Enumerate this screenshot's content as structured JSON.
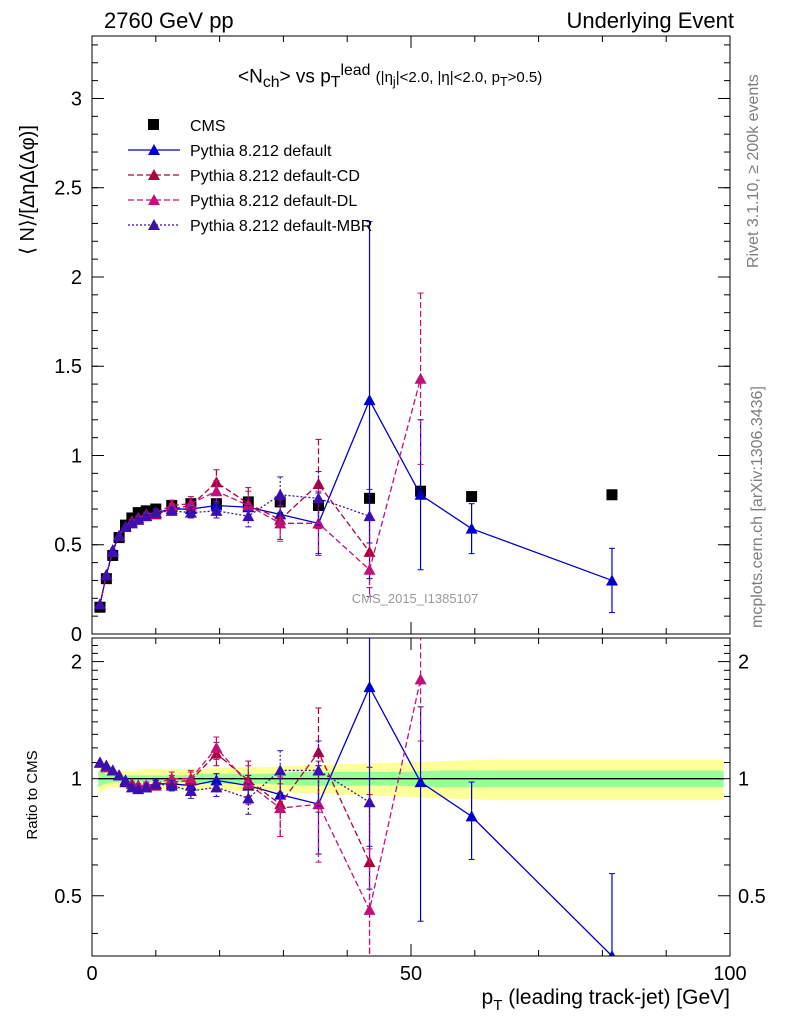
{
  "header": {
    "left_label": "2760 GeV pp",
    "right_label": "Underlying Event",
    "title_html": "&lt;N<sub>ch</sub>&gt; vs p<sub>T</sub><sup>lead</sup> <span style='font-size:15px'>(|η<sub>j</sub>|&lt;2.0, |η|&lt;2.0, p<sub>T</sub>&gt;0.5)</span>"
  },
  "side_labels": {
    "rivet": "Rivet 3.1.10, ≥ 200k events",
    "mcplots": "mcplots.cern.ch [arXiv:1306.3436]"
  },
  "watermark": "CMS_2015_I1385107",
  "chart_data": [
    {
      "type": "scatter",
      "panel": "main",
      "ylabel": "⟨ N⟩/[ΔηΔ(Δφ)]",
      "xlim": [
        0,
        100
      ],
      "ylim": [
        0,
        3.35
      ],
      "yticks": [
        0,
        0.5,
        1,
        1.5,
        2,
        2.5,
        3
      ],
      "ytick_labels": [
        "0",
        "0.5",
        "1",
        "1.5",
        "2",
        "2.5",
        "3"
      ],
      "legend_position": "top-left",
      "series": [
        {
          "name": "CMS",
          "color": "#000000",
          "marker": "square",
          "line": "none",
          "x": [
            1.25,
            2.25,
            3.25,
            4.25,
            5.25,
            6.25,
            7.25,
            8.5,
            10,
            12.5,
            15.5,
            19.5,
            24.5,
            29.5,
            35.5,
            43.5,
            51.5,
            59.5,
            81.5
          ],
          "y": [
            0.15,
            0.31,
            0.44,
            0.54,
            0.61,
            0.65,
            0.68,
            0.69,
            0.7,
            0.72,
            0.73,
            0.73,
            0.74,
            0.74,
            0.72,
            0.76,
            0.8,
            0.77,
            0.78
          ]
        },
        {
          "name": "Pythia 8.212 default",
          "color": "#0000cc",
          "marker": "triangle",
          "line": "solid",
          "x": [
            1.25,
            2.25,
            3.25,
            4.25,
            5.25,
            6.25,
            7.25,
            8.5,
            10,
            12.5,
            15.5,
            19.5,
            24.5,
            29.5,
            35.5,
            43.5,
            51.5,
            59.5,
            81.5
          ],
          "y": [
            0.165,
            0.33,
            0.47,
            0.55,
            0.6,
            0.63,
            0.65,
            0.67,
            0.68,
            0.7,
            0.7,
            0.72,
            0.71,
            0.67,
            0.62,
            1.31,
            0.78,
            0.59,
            0.3
          ],
          "yerr": [
            0,
            0,
            0,
            0,
            0,
            0.01,
            0.01,
            0.01,
            0.01,
            0.02,
            0.02,
            0.03,
            0.05,
            0.07,
            0.17,
            1.0,
            0.42,
            0.14,
            0.18
          ]
        },
        {
          "name": "Pythia 8.212 default-CD",
          "color": "#b0003c",
          "marker": "triangle",
          "line": "dashed",
          "x": [
            1.25,
            2.25,
            3.25,
            4.25,
            5.25,
            6.25,
            7.25,
            8.5,
            10,
            12.5,
            15.5,
            19.5,
            24.5,
            29.5,
            35.5,
            43.5
          ],
          "y": [
            0.165,
            0.33,
            0.46,
            0.55,
            0.6,
            0.63,
            0.64,
            0.66,
            0.67,
            0.7,
            0.72,
            0.85,
            0.73,
            0.64,
            0.84,
            0.46
          ],
          "yerr": [
            0,
            0,
            0,
            0,
            0,
            0.01,
            0.01,
            0.01,
            0.02,
            0.03,
            0.04,
            0.07,
            0.09,
            0.11,
            0.25,
            0.2
          ]
        },
        {
          "name": "Pythia 8.212 default-DL",
          "color": "#c0107a",
          "marker": "triangle",
          "line": "dashed",
          "x": [
            1.25,
            2.25,
            3.25,
            4.25,
            5.25,
            6.25,
            7.25,
            8.5,
            10,
            12.5,
            15.5,
            19.5,
            24.5,
            29.5,
            35.5,
            43.5,
            51.5
          ],
          "y": [
            0.165,
            0.33,
            0.46,
            0.55,
            0.6,
            0.63,
            0.65,
            0.67,
            0.68,
            0.72,
            0.73,
            0.8,
            0.72,
            0.62,
            0.62,
            0.36,
            1.43
          ],
          "yerr": [
            0,
            0,
            0,
            0,
            0,
            0.01,
            0.01,
            0.01,
            0.02,
            0.03,
            0.04,
            0.06,
            0.08,
            0.1,
            0.18,
            0.15,
            0.48
          ]
        },
        {
          "name": "Pythia 8.212 default-MBR",
          "color": "#3a10b0",
          "marker": "triangle",
          "line": "dotted",
          "x": [
            1.25,
            2.25,
            3.25,
            4.25,
            5.25,
            6.25,
            7.25,
            8.5,
            10,
            12.5,
            15.5,
            19.5,
            24.5,
            29.5,
            35.5,
            43.5
          ],
          "y": [
            0.165,
            0.33,
            0.46,
            0.55,
            0.6,
            0.62,
            0.64,
            0.66,
            0.68,
            0.69,
            0.68,
            0.69,
            0.66,
            0.78,
            0.76,
            0.66
          ],
          "yerr": [
            0,
            0,
            0,
            0,
            0,
            0.01,
            0.01,
            0.01,
            0.01,
            0.02,
            0.03,
            0.04,
            0.06,
            0.1,
            0.15,
            0.15
          ]
        }
      ]
    },
    {
      "type": "scatter",
      "panel": "ratio",
      "ylabel": "Ratio to CMS",
      "xlabel": "p_T (leading track-jet) [GeV]",
      "xlim": [
        0,
        100
      ],
      "ylim": [
        0.35,
        2.3
      ],
      "xticks": [
        0,
        50,
        100
      ],
      "xtick_labels": [
        "0",
        "50",
        "100"
      ],
      "yticks": [
        0.5,
        1,
        2
      ],
      "ytick_labels": [
        "0.5",
        "1",
        "2"
      ],
      "log_scale_y": true,
      "uncertainty_band": {
        "x": [
          1,
          2,
          3,
          4,
          5,
          6,
          7,
          8,
          9,
          11,
          14,
          17,
          22,
          27,
          32,
          39,
          48,
          55,
          64,
          99
        ],
        "yellow_half_width": [
          0.09,
          0.06,
          0.05,
          0.05,
          0.05,
          0.05,
          0.05,
          0.06,
          0.06,
          0.06,
          0.06,
          0.06,
          0.07,
          0.07,
          0.08,
          0.09,
          0.1,
          0.11,
          0.12,
          0.12
        ],
        "green_half_width": [
          0.05,
          0.03,
          0.02,
          0.02,
          0.02,
          0.02,
          0.02,
          0.02,
          0.02,
          0.02,
          0.02,
          0.03,
          0.03,
          0.03,
          0.04,
          0.04,
          0.04,
          0.05,
          0.05,
          0.05
        ],
        "yellow_color": "#ffff99",
        "green_color": "#99ff99"
      },
      "series": [
        {
          "name": "Pythia 8.212 default",
          "color": "#0000cc",
          "line": "solid",
          "x": [
            1.25,
            2.25,
            3.25,
            4.25,
            5.25,
            6.25,
            7.25,
            8.5,
            10,
            12.5,
            15.5,
            19.5,
            24.5,
            29.5,
            35.5,
            43.5,
            51.5,
            59.5,
            81.5
          ],
          "y": [
            1.1,
            1.08,
            1.05,
            1.02,
            0.99,
            0.97,
            0.96,
            0.96,
            0.97,
            0.97,
            0.96,
            0.99,
            0.96,
            0.91,
            0.86,
            1.72,
            0.98,
            0.8,
            0.35
          ],
          "yerr": [
            0,
            0,
            0,
            0,
            0,
            0.01,
            0.01,
            0.02,
            0.02,
            0.03,
            0.03,
            0.04,
            0.06,
            0.09,
            0.22,
            1.2,
            0.55,
            0.18,
            0.22
          ]
        },
        {
          "name": "Pythia 8.212 default-CD",
          "color": "#b0003c",
          "line": "dashed",
          "x": [
            1.25,
            2.25,
            3.25,
            4.25,
            5.25,
            6.25,
            7.25,
            8.5,
            10,
            12.5,
            15.5,
            19.5,
            24.5,
            29.5,
            35.5,
            43.5
          ],
          "y": [
            1.1,
            1.07,
            1.05,
            1.02,
            0.98,
            0.97,
            0.95,
            0.95,
            0.96,
            0.98,
            0.99,
            1.16,
            0.99,
            0.86,
            1.17,
            0.61
          ],
          "yerr": [
            0,
            0,
            0,
            0,
            0,
            0.01,
            0.01,
            0.02,
            0.02,
            0.04,
            0.05,
            0.08,
            0.12,
            0.15,
            0.35,
            0.3
          ]
        },
        {
          "name": "Pythia 8.212 default-DL",
          "color": "#c0107a",
          "line": "dashed",
          "x": [
            1.25,
            2.25,
            3.25,
            4.25,
            5.25,
            6.25,
            7.25,
            8.5,
            10,
            12.5,
            15.5,
            19.5,
            24.5,
            29.5,
            35.5,
            43.5,
            51.5
          ],
          "y": [
            1.1,
            1.07,
            1.05,
            1.02,
            0.98,
            0.97,
            0.96,
            0.96,
            0.97,
            1.0,
            1.0,
            1.2,
            0.97,
            0.84,
            0.86,
            0.46,
            1.8
          ],
          "yerr": [
            0,
            0,
            0,
            0,
            0,
            0.01,
            0.01,
            0.02,
            0.02,
            0.04,
            0.05,
            0.08,
            0.11,
            0.13,
            0.25,
            0.2,
            0.55
          ]
        },
        {
          "name": "Pythia 8.212 default-MBR",
          "color": "#3a10b0",
          "line": "dotted",
          "x": [
            1.25,
            2.25,
            3.25,
            4.25,
            5.25,
            6.25,
            7.25,
            8.5,
            10,
            12.5,
            15.5,
            19.5,
            24.5,
            29.5,
            35.5,
            43.5
          ],
          "y": [
            1.1,
            1.08,
            1.05,
            1.02,
            0.98,
            0.95,
            0.94,
            0.95,
            0.97,
            0.96,
            0.93,
            0.95,
            0.89,
            1.05,
            1.05,
            0.87
          ],
          "yerr": [
            0,
            0,
            0,
            0,
            0,
            0.01,
            0.01,
            0.02,
            0.02,
            0.03,
            0.04,
            0.05,
            0.08,
            0.13,
            0.2,
            0.2
          ]
        }
      ]
    }
  ]
}
